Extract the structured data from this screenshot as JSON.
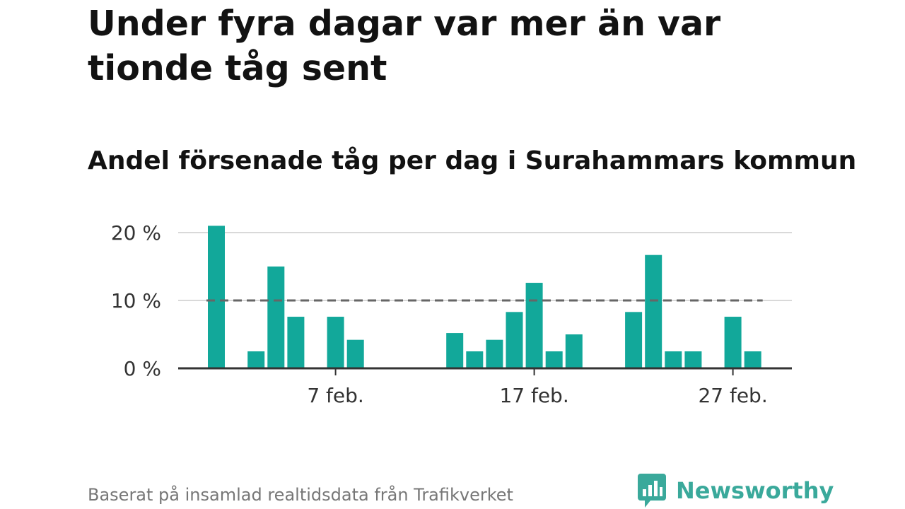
{
  "title": "Under fyra dagar var mer än var tionde tåg sent",
  "subtitle": "Andel försenade tåg per dag i Surahammars kommun",
  "footer": "Baserat på insamlad realtidsdata från Trafikverket",
  "brand": {
    "name": "Newsworthy",
    "icon": "bar-chart-speech-icon"
  },
  "colors": {
    "bar": "#12a89a",
    "reference_line": "#666666",
    "grid": "#d9d9d9",
    "axis": "#333333",
    "brand": "#3aa99b"
  },
  "chart_data": {
    "type": "bar",
    "x_type": "date",
    "x": [
      "2023-02-01",
      "2023-02-02",
      "2023-02-03",
      "2023-02-04",
      "2023-02-05",
      "2023-02-06",
      "2023-02-07",
      "2023-02-08",
      "2023-02-09",
      "2023-02-10",
      "2023-02-11",
      "2023-02-12",
      "2023-02-13",
      "2023-02-14",
      "2023-02-15",
      "2023-02-16",
      "2023-02-17",
      "2023-02-18",
      "2023-02-19",
      "2023-02-20",
      "2023-02-21",
      "2023-02-22",
      "2023-02-23",
      "2023-02-24",
      "2023-02-25",
      "2023-02-26",
      "2023-02-27",
      "2023-02-28"
    ],
    "values": [
      21,
      0,
      2.5,
      15,
      7.6,
      0,
      7.6,
      4.2,
      0,
      0,
      0,
      0,
      5.2,
      2.5,
      4.2,
      8.3,
      12.6,
      2.5,
      5,
      0,
      0,
      8.3,
      16.7,
      2.5,
      2.5,
      0,
      7.6,
      2.5
    ],
    "reference_line": {
      "value": 10,
      "style": "dashed"
    },
    "y_ticks": [
      0,
      10,
      20
    ],
    "y_tick_labels": [
      "0 %",
      "10 %",
      "20 %"
    ],
    "ylim": [
      0,
      22
    ],
    "x_ticks": [
      "2023-02-07",
      "2023-02-17",
      "2023-02-27"
    ],
    "x_tick_labels": [
      "7 feb.",
      "17 feb.",
      "27 feb."
    ],
    "grid": "horizontal",
    "xlabel": "",
    "ylabel": ""
  }
}
